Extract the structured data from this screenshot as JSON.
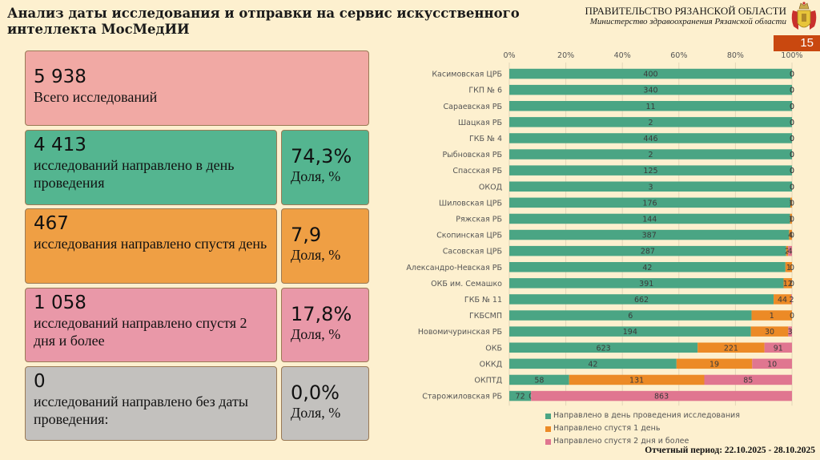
{
  "header": {
    "title": "Анализ даты исследования и отправки на сервис искусственного интеллекта МосМедИИ",
    "org": "ПРАВИТЕЛЬСТВО РЯЗАНСКОЙ ОБЛАСТИ",
    "ministry": "Министерство здравоохранения Рязанской области",
    "page_number": "15"
  },
  "cards": {
    "total": {
      "value": "5 938",
      "label": "Всего исследований"
    },
    "same_day": {
      "value": "4 413",
      "label": "исследований направлено в день проведения",
      "share": "74,3%",
      "share_label": "Доля, %"
    },
    "next_day": {
      "value": "467",
      "label": "исследования направлено спустя день",
      "share": "7,9",
      "share_label": "Доля, %"
    },
    "two_plus": {
      "value": "1 058",
      "label": "исследований направлено спустя 2 дня и более",
      "share": "17,8%",
      "share_label": "Доля, %"
    },
    "no_date": {
      "value": "0",
      "label": "исследований направлено без даты проведения:",
      "share": "0,0%",
      "share_label": "Доля, %"
    }
  },
  "colors": {
    "same_day": "#4aa584",
    "next_day": "#ec8a26",
    "two_plus": "#e07690"
  },
  "footer": {
    "period": "Отчетный период: 22.10.2025 - 28.10.2025"
  },
  "chart_data": {
    "type": "bar",
    "stacked": "percent",
    "orientation": "horizontal",
    "title": "",
    "xlabel": "",
    "ylabel": "",
    "xlim": [
      0,
      100
    ],
    "x_ticks": [
      "0%",
      "20%",
      "40%",
      "60%",
      "80%",
      "100%"
    ],
    "grid": true,
    "legend_position": "bottom",
    "categories": [
      "Касимовская ЦРБ",
      "ГКП № 6",
      "Сараевская РБ",
      "Шацкая РБ",
      "ГКБ № 4",
      "Рыбновская РБ",
      "Спасская РБ",
      "ОКОД",
      "Шиловская ЦРБ",
      "Ряжская РБ",
      "Скопинская ЦРБ",
      "Сасовская ЦРБ",
      "Александро-Невская РБ",
      "ОКБ им. Семашко",
      "ГКБ № 11",
      "ГКБСМП",
      "Новомичуринская РБ",
      "ОКБ",
      "ОККД",
      "ОКПТД",
      "Старожиловская РБ"
    ],
    "series": [
      {
        "name": "Направлено в день проведения исследования",
        "color": "#4aa584",
        "values": [
          400,
          340,
          11,
          2,
          446,
          2,
          125,
          3,
          176,
          144,
          387,
          287,
          42,
          391,
          662,
          6,
          194,
          623,
          42,
          58,
          72
        ]
      },
      {
        "name": "Направлено спустя 1 день",
        "color": "#ec8a26",
        "values": [
          0,
          0,
          0,
          0,
          0,
          0,
          0,
          0,
          1,
          1,
          4,
          2,
          1,
          12,
          44,
          1,
          30,
          221,
          19,
          131,
          0
        ]
      },
      {
        "name": "Направлено спустя 2 дня и более",
        "color": "#e07690",
        "values": [
          0,
          0,
          0,
          0,
          0,
          0,
          0,
          0,
          0,
          0,
          0,
          4,
          0,
          0,
          2,
          0,
          3,
          91,
          10,
          85,
          863
        ]
      }
    ]
  }
}
